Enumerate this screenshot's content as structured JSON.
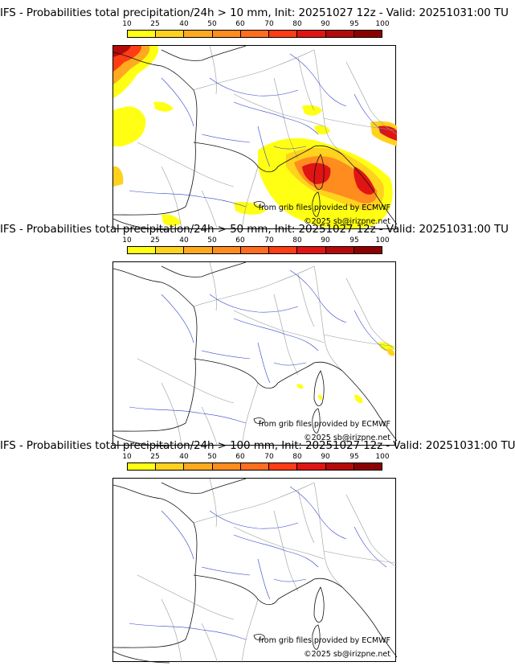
{
  "legend": {
    "ticks": [
      "10",
      "25",
      "40",
      "50",
      "60",
      "70",
      "80",
      "90",
      "95",
      "100"
    ],
    "colors": [
      "#ffff14",
      "#ffd21e",
      "#ffaa1e",
      "#ff8c1e",
      "#ff6e1e",
      "#ff3c14",
      "#e11414",
      "#b40a0a",
      "#8c0000",
      "#5a0000"
    ]
  },
  "credits": {
    "source": "from grib files provided by ECMWF",
    "copyright": "©2025 sb@irizpne.net"
  },
  "panels": [
    {
      "title": "IFS - Probabilities total precipitation/24h > 10 mm, Init: 20251027 12z - Valid: 20251031:00 TU"
    },
    {
      "title": "IFS - Probabilities total precipitation/24h > 50 mm, Init: 20251027 12z - Valid: 20251031:00 TU"
    },
    {
      "title": "IFS - Probabilities total precipitation/24h > 100 mm, Init: 20251027 12z - Valid: 20251031:00 TU"
    }
  ]
}
